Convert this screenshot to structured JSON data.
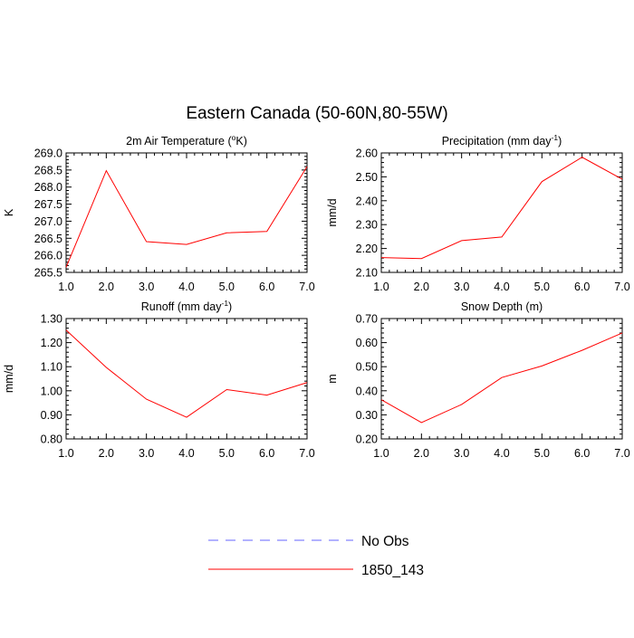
{
  "figure": {
    "title": "Eastern Canada (50-60N,80-55W)"
  },
  "chart_data": [
    {
      "type": "line",
      "title": "2m Air Temperature (°K)",
      "title_parts": [
        "2m Air Temperature (",
        "o",
        "K)"
      ],
      "xlabel": "",
      "ylabel": "K",
      "xlim": [
        1.0,
        7.0
      ],
      "ylim": [
        265.5,
        269.0
      ],
      "xticks": [
        1.0,
        2.0,
        3.0,
        4.0,
        5.0,
        6.0,
        7.0
      ],
      "xtick_labels": [
        "1.0",
        "2.0",
        "3.0",
        "4.0",
        "5.0",
        "6.0",
        "7.0"
      ],
      "yticks": [
        265.5,
        266.0,
        266.5,
        267.0,
        267.5,
        268.0,
        268.5,
        269.0
      ],
      "ytick_labels": [
        "265.5",
        "266.0",
        "266.5",
        "267.0",
        "267.5",
        "268.0",
        "268.5",
        "269.0"
      ],
      "series": [
        {
          "name": "1850_143",
          "color": "#ff0000",
          "x": [
            1,
            2,
            3,
            4,
            5,
            6,
            7
          ],
          "y": [
            265.65,
            268.48,
            266.4,
            266.32,
            266.66,
            266.7,
            268.6
          ]
        }
      ]
    },
    {
      "type": "line",
      "title": "Precipitation (mm day-1)",
      "title_parts": [
        "Precipitation (mm day",
        "-1",
        ")"
      ],
      "xlabel": "",
      "ylabel": "mm/d",
      "xlim": [
        1.0,
        7.0
      ],
      "ylim": [
        2.1,
        2.6
      ],
      "xticks": [
        1.0,
        2.0,
        3.0,
        4.0,
        5.0,
        6.0,
        7.0
      ],
      "xtick_labels": [
        "1.0",
        "2.0",
        "3.0",
        "4.0",
        "5.0",
        "6.0",
        "7.0"
      ],
      "yticks": [
        2.1,
        2.2,
        2.3,
        2.4,
        2.5,
        2.6
      ],
      "ytick_labels": [
        "2.10",
        "2.20",
        "2.30",
        "2.40",
        "2.50",
        "2.60"
      ],
      "series": [
        {
          "name": "1850_143",
          "color": "#ff0000",
          "x": [
            1,
            2,
            3,
            4,
            5,
            6,
            7
          ],
          "y": [
            2.162,
            2.158,
            2.233,
            2.248,
            2.48,
            2.582,
            2.49
          ]
        }
      ]
    },
    {
      "type": "line",
      "title": "Runoff (mm day-1)",
      "title_parts": [
        "Runoff (mm day",
        "-1",
        ")"
      ],
      "xlabel": "",
      "ylabel": "mm/d",
      "xlim": [
        1.0,
        7.0
      ],
      "ylim": [
        0.8,
        1.3
      ],
      "xticks": [
        1.0,
        2.0,
        3.0,
        4.0,
        5.0,
        6.0,
        7.0
      ],
      "xtick_labels": [
        "1.0",
        "2.0",
        "3.0",
        "4.0",
        "5.0",
        "6.0",
        "7.0"
      ],
      "yticks": [
        0.8,
        0.9,
        1.0,
        1.1,
        1.2,
        1.3
      ],
      "ytick_labels": [
        "0.80",
        "0.90",
        "1.00",
        "1.10",
        "1.20",
        "1.30"
      ],
      "series": [
        {
          "name": "1850_143",
          "color": "#ff0000",
          "x": [
            1,
            2,
            3,
            4,
            5,
            6,
            7
          ],
          "y": [
            1.252,
            1.097,
            0.965,
            0.89,
            1.005,
            0.982,
            1.034
          ]
        }
      ]
    },
    {
      "type": "line",
      "title": "Snow Depth (m)",
      "title_parts": [
        "Snow Depth (m)"
      ],
      "xlabel": "",
      "ylabel": "m",
      "xlim": [
        1.0,
        7.0
      ],
      "ylim": [
        0.2,
        0.7
      ],
      "xticks": [
        1.0,
        2.0,
        3.0,
        4.0,
        5.0,
        6.0,
        7.0
      ],
      "xtick_labels": [
        "1.0",
        "2.0",
        "3.0",
        "4.0",
        "5.0",
        "6.0",
        "7.0"
      ],
      "yticks": [
        0.2,
        0.3,
        0.4,
        0.5,
        0.6,
        0.7
      ],
      "ytick_labels": [
        "0.20",
        "0.30",
        "0.40",
        "0.50",
        "0.60",
        "0.70"
      ],
      "series": [
        {
          "name": "1850_143",
          "color": "#ff0000",
          "x": [
            1,
            2,
            3,
            4,
            5,
            6,
            7
          ],
          "y": [
            0.363,
            0.268,
            0.343,
            0.455,
            0.503,
            0.568,
            0.64
          ]
        }
      ]
    }
  ],
  "legend": {
    "placement": "bottom-center",
    "entries": [
      {
        "label": "No Obs",
        "color": "#6666ff",
        "style": "dashed"
      },
      {
        "label": "1850_143",
        "color": "#ff0000",
        "style": "solid"
      }
    ]
  }
}
